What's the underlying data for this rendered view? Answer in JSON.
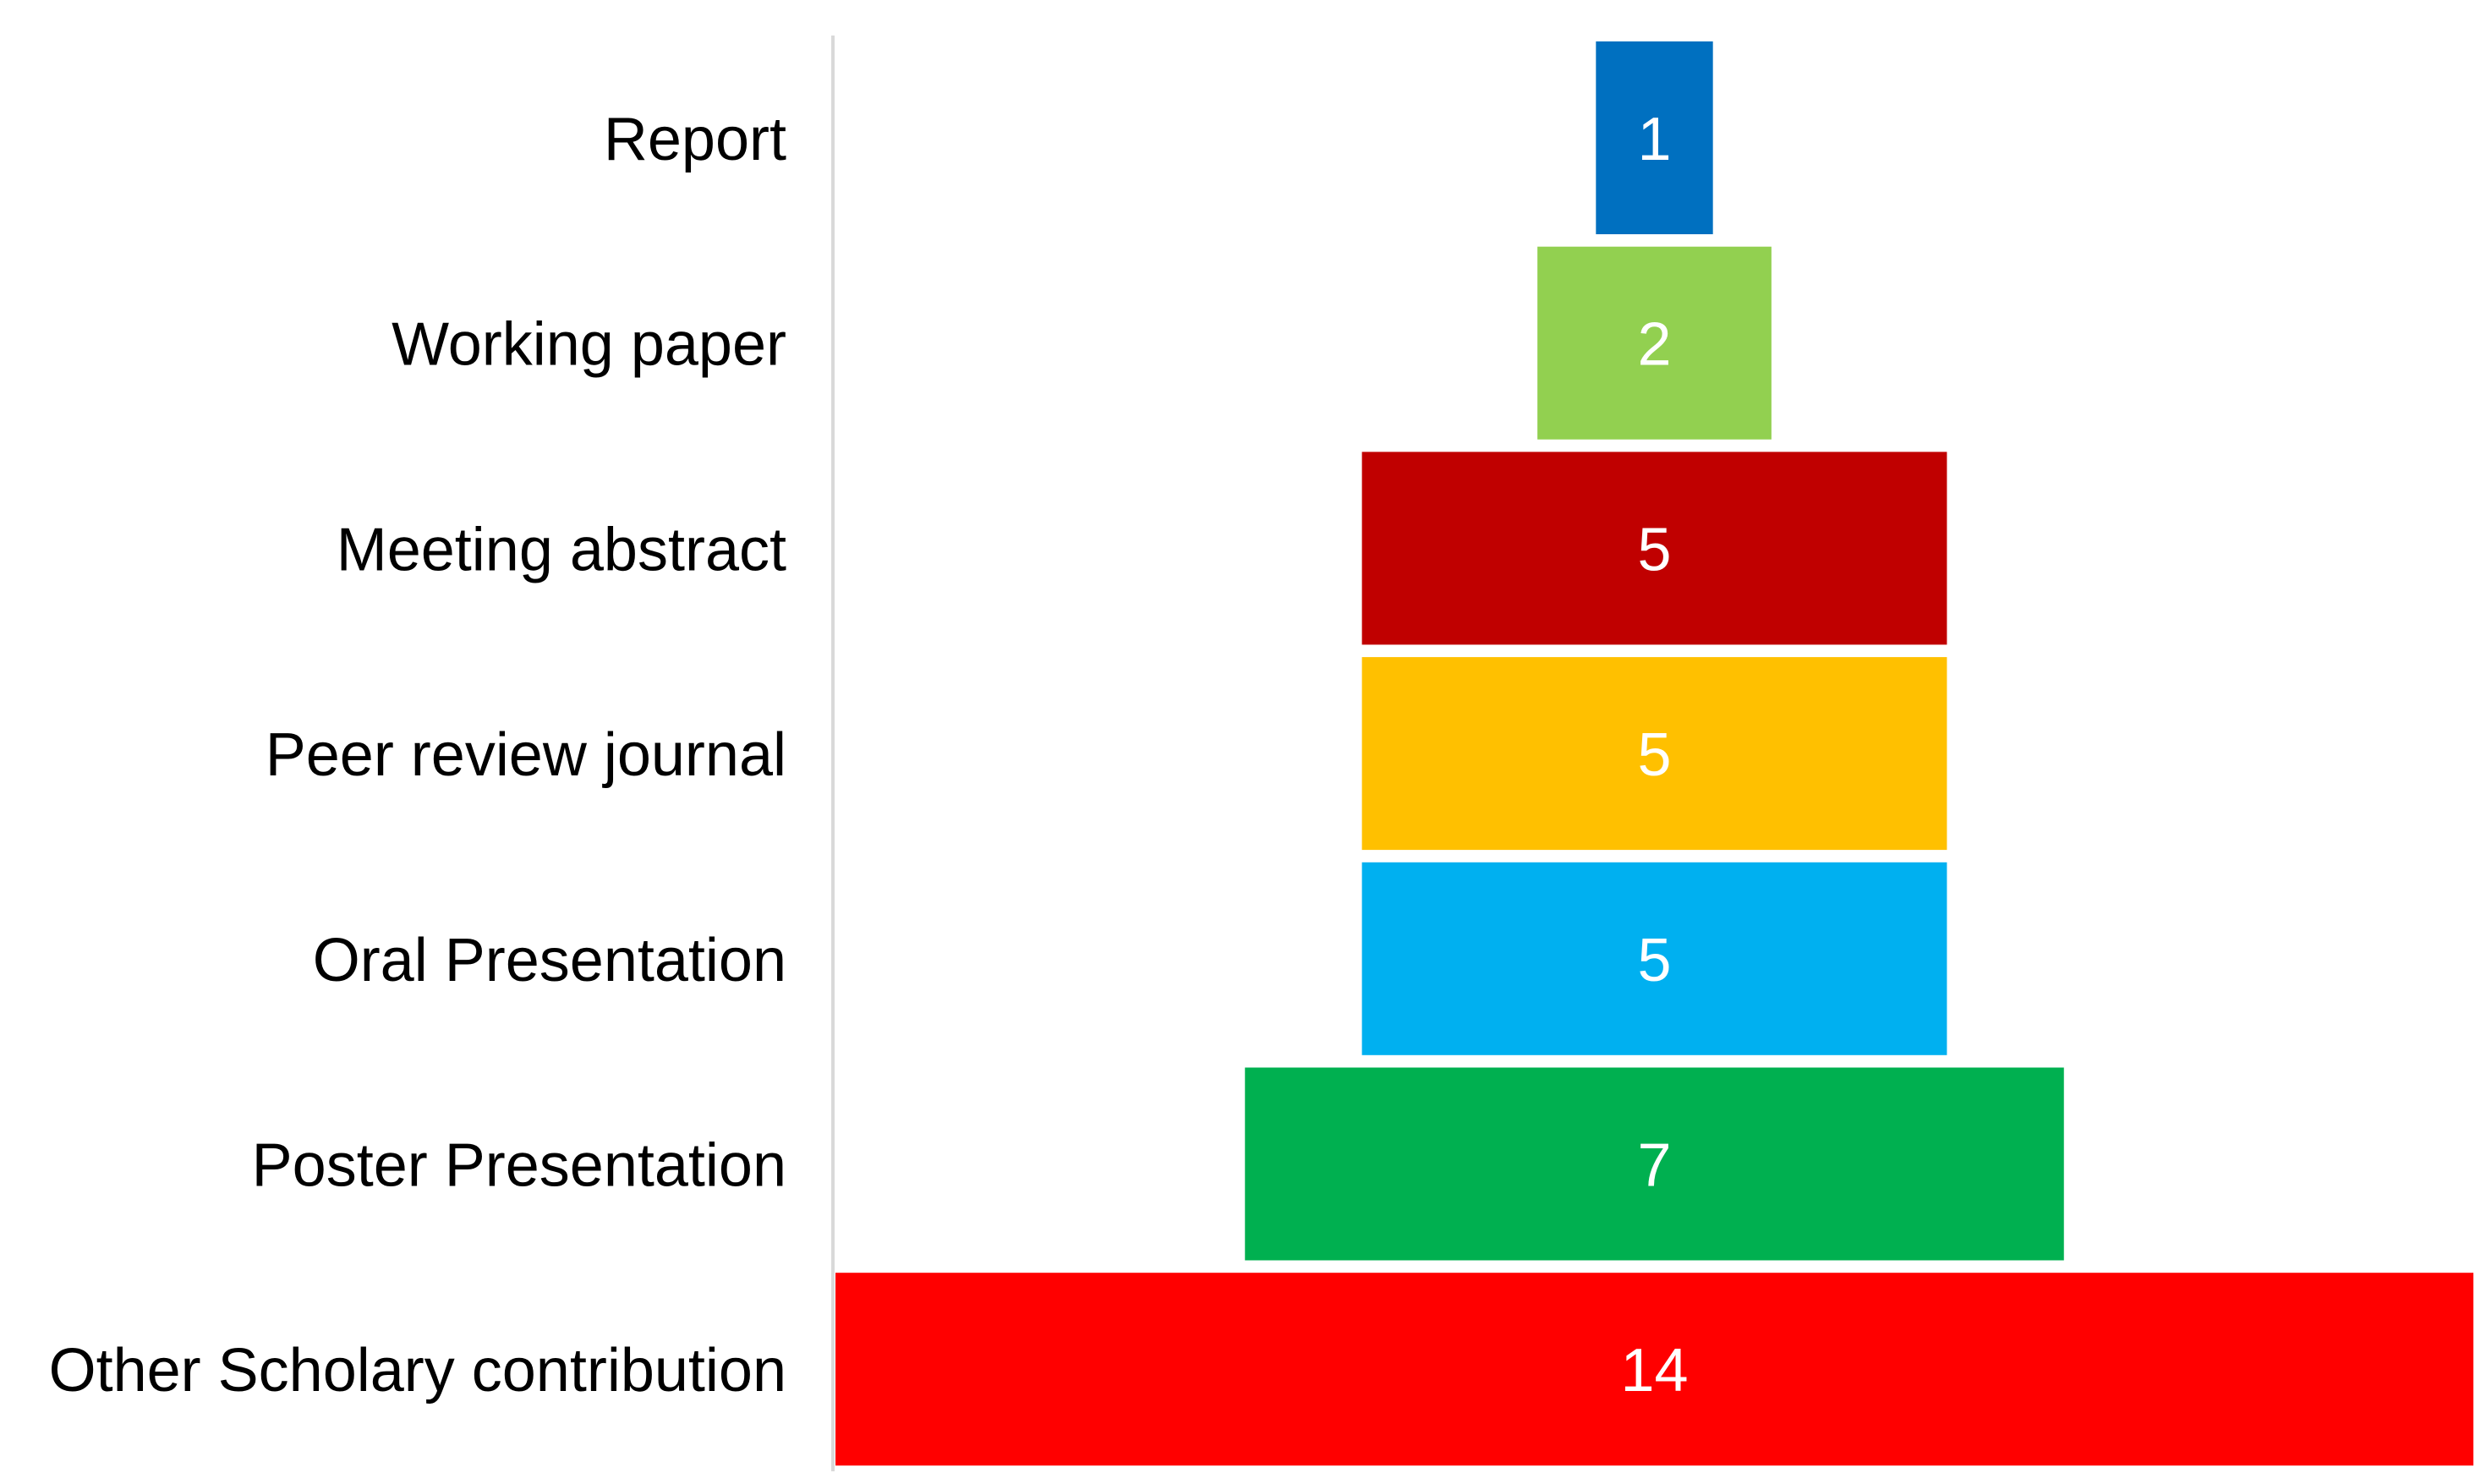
{
  "chart_data": {
    "type": "funnel",
    "categories": [
      "Report",
      "Working paper",
      "Meeting abstract",
      "Peer review journal",
      "Oral Presentation",
      "Poster Presentation",
      "Other Scholary contribution"
    ],
    "values": [
      1,
      2,
      5,
      5,
      5,
      7,
      14
    ],
    "colors": [
      "#0070c0",
      "#92d050",
      "#c00000",
      "#ffc000",
      "#00b0f0",
      "#00b050",
      "#ff0000"
    ]
  }
}
